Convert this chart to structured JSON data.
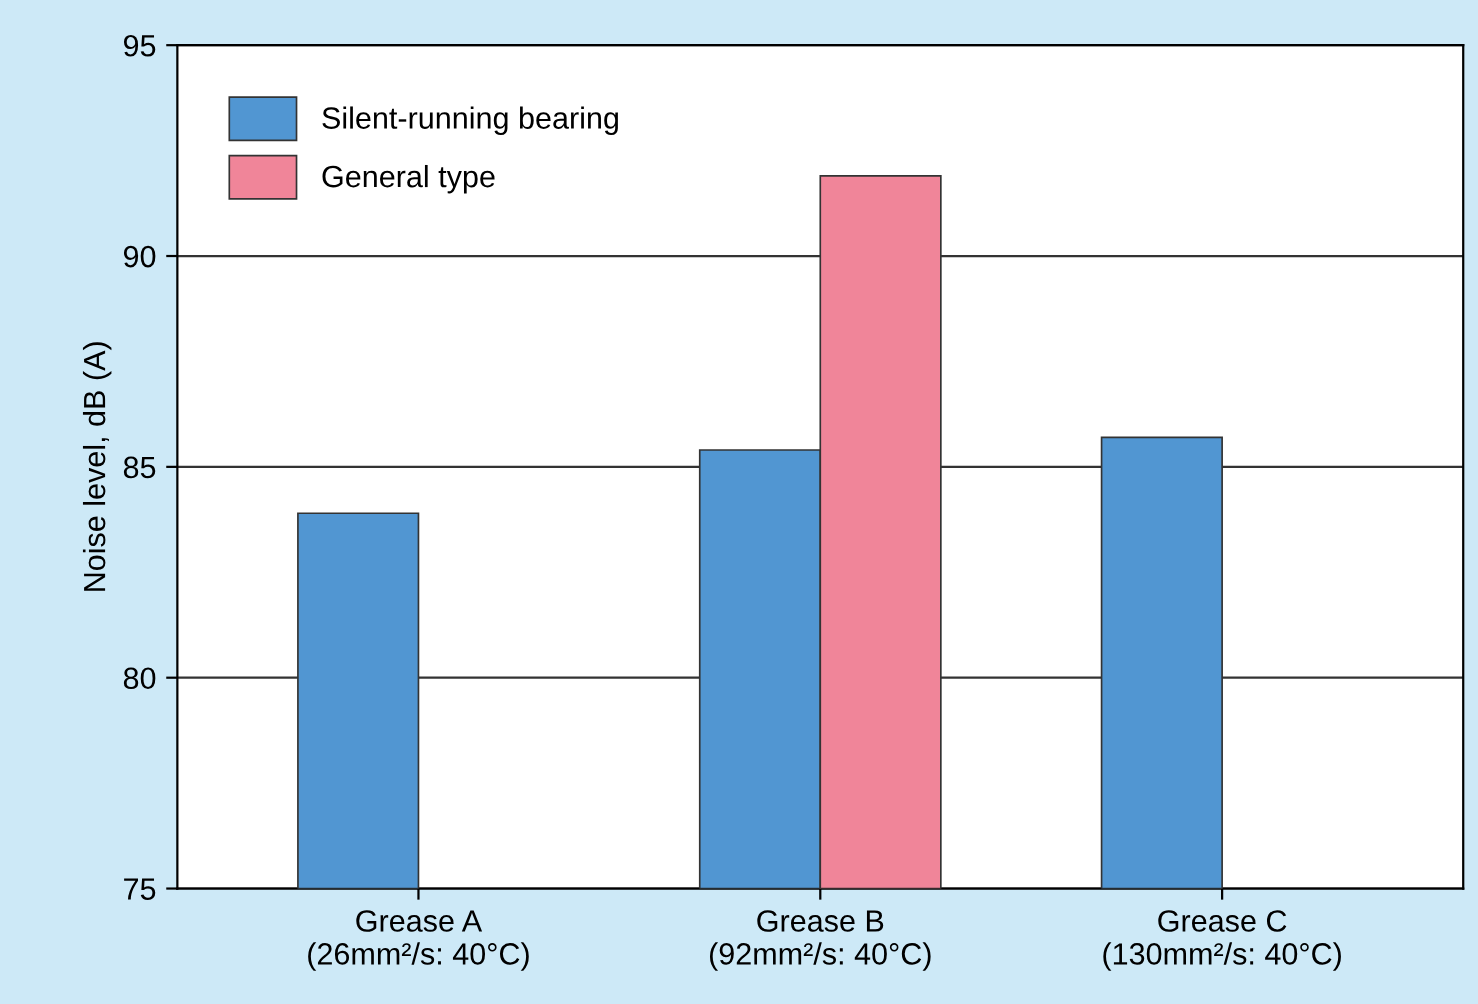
{
  "chart_data": {
    "type": "bar",
    "ylabel": "Noise level, dB (A)",
    "categories": [
      "Grease A\n(26mm²/s: 40°C)",
      "Grease B\n(92mm²/s: 40°C)",
      "Grease C\n(130mm²/s: 40°C)"
    ],
    "series": [
      {
        "name": "Silent-running bearing",
        "color": "#5196d2",
        "values": [
          83.9,
          85.4,
          85.7
        ]
      },
      {
        "name": "General type",
        "color": "#f08599",
        "values": [
          null,
          91.9,
          null
        ]
      }
    ],
    "ylim": [
      75,
      95
    ],
    "yticks": [
      75,
      80,
      85,
      90,
      95
    ],
    "grid": "y",
    "legend": "top left"
  }
}
